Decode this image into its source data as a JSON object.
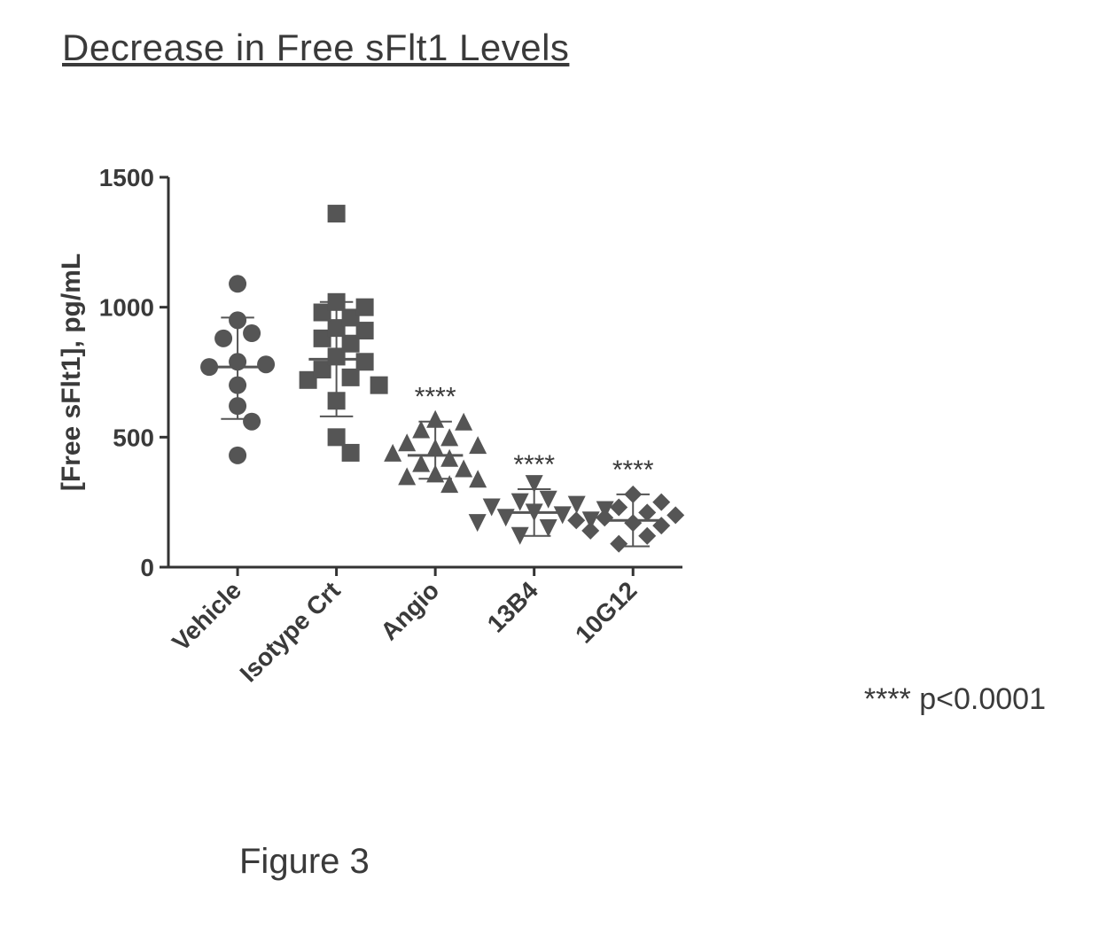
{
  "title": "Decrease in Free sFlt1 Levels",
  "figure_label": "Figure 3",
  "significance_note": "**** p<0.0001",
  "chart": {
    "type": "scatter-dotplot",
    "ylabel": "[Free sFlt1], pg/mL",
    "ylim": [
      0,
      1500
    ],
    "yticks": [
      0,
      500,
      1000,
      1500
    ],
    "background_color": "#ffffff",
    "axis_color": "#333333",
    "text_color": "#3a3a3a",
    "tick_fontsize": 28,
    "label_fontsize": 30,
    "marker_size": 10,
    "marker_color": "#555555",
    "errorbar_color": "#555555",
    "errorbar_width": 2,
    "categories": [
      {
        "label": "Vehicle",
        "marker": "circle",
        "significance": "",
        "mean": 770,
        "sd_low": 570,
        "sd_high": 960,
        "points": [
          430,
          560,
          620,
          700,
          770,
          780,
          790,
          880,
          900,
          950,
          1090
        ]
      },
      {
        "label": "Isotype Crt",
        "marker": "square",
        "significance": "",
        "mean": 800,
        "sd_low": 580,
        "sd_high": 1020,
        "points": [
          440,
          500,
          640,
          700,
          720,
          730,
          760,
          790,
          810,
          860,
          880,
          910,
          920,
          960,
          980,
          1000,
          1020,
          1360
        ]
      },
      {
        "label": "Angio",
        "marker": "triangle",
        "significance": "****",
        "mean": 430,
        "sd_low": 340,
        "sd_high": 560,
        "points": [
          320,
          340,
          350,
          360,
          380,
          400,
          420,
          440,
          460,
          470,
          480,
          500,
          530,
          560,
          570
        ]
      },
      {
        "label": "13B4",
        "marker": "triangle-down",
        "significance": "****",
        "mean": 210,
        "sd_low": 120,
        "sd_high": 300,
        "points": [
          120,
          150,
          170,
          180,
          190,
          200,
          210,
          220,
          230,
          240,
          250,
          260,
          320
        ]
      },
      {
        "label": "10G12",
        "marker": "diamond",
        "significance": "****",
        "mean": 180,
        "sd_low": 80,
        "sd_high": 280,
        "points": [
          90,
          120,
          140,
          160,
          170,
          180,
          190,
          200,
          210,
          230,
          250,
          280
        ]
      }
    ]
  }
}
